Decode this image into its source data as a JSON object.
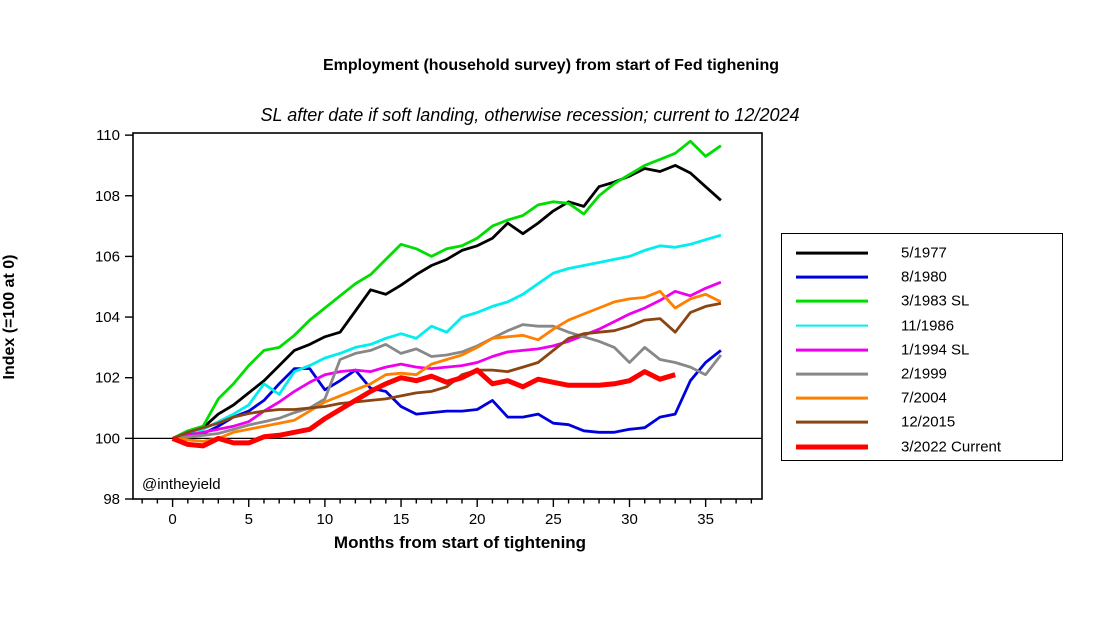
{
  "title": "Employment (household survey) from start of Fed tighening",
  "subtitle": "SL after date if soft landing, otherwise recession; current to 12/2024",
  "watermark": "@intheyield",
  "chart_data": {
    "type": "line",
    "title": "Employment (household survey) from start of Fed tighening",
    "subtitle": "SL after date if soft landing, otherwise recession; current to 12/2024",
    "xlabel": "Months from start of tightening",
    "ylabel": "Index (=100 at 0)",
    "xlim": [
      -2.6,
      38.7
    ],
    "ylim": [
      98,
      110.07
    ],
    "x_major_ticks": [
      0,
      5,
      10,
      15,
      20,
      25,
      30,
      35
    ],
    "x_minor_tick_every": 1,
    "y_ticks": [
      98,
      100,
      102,
      104,
      106,
      108,
      110
    ],
    "reference_line_y": 100,
    "grid": false,
    "legend_position": "right",
    "x_unit": "months_from_start",
    "series": [
      {
        "name": "5/1977",
        "color": "#000000",
        "line_width": 2.8,
        "values": [
          100,
          100.15,
          100.35,
          100.8,
          101.1,
          101.5,
          101.9,
          102.4,
          102.9,
          103.1,
          103.35,
          103.5,
          104.2,
          104.9,
          104.75,
          105.05,
          105.4,
          105.7,
          105.9,
          106.2,
          106.35,
          106.6,
          107.1,
          106.75,
          107.1,
          107.5,
          107.8,
          107.65,
          108.3,
          108.45,
          108.65,
          108.9,
          108.8,
          109.0,
          108.75,
          108.3,
          107.85
        ]
      },
      {
        "name": "8/1980",
        "color": "#0000DD",
        "line_width": 2.8,
        "values": [
          100,
          100.05,
          100.15,
          100.4,
          100.7,
          100.9,
          101.25,
          101.8,
          102.3,
          102.3,
          101.6,
          101.9,
          102.25,
          101.65,
          101.55,
          101.05,
          100.8,
          100.85,
          100.9,
          100.9,
          100.95,
          101.25,
          100.7,
          100.7,
          100.8,
          100.5,
          100.45,
          100.25,
          100.2,
          100.2,
          100.3,
          100.35,
          100.7,
          100.8,
          101.9,
          102.5,
          102.9
        ]
      },
      {
        "name": "3/1983 SL",
        "color": "#00DD00",
        "line_width": 2.8,
        "values": [
          100,
          100.25,
          100.4,
          101.3,
          101.8,
          102.4,
          102.9,
          103.0,
          103.4,
          103.9,
          104.3,
          104.7,
          105.1,
          105.4,
          105.9,
          106.4,
          106.25,
          106.0,
          106.25,
          106.35,
          106.6,
          107.0,
          107.2,
          107.35,
          107.7,
          107.8,
          107.75,
          107.4,
          108.0,
          108.4,
          108.7,
          109.0,
          109.2,
          109.4,
          109.8,
          109.3,
          109.65
        ]
      },
      {
        "name": "11/1986",
        "color": "#00EEEE",
        "line_width": 2.8,
        "values": [
          100,
          100.2,
          100.3,
          100.55,
          100.8,
          101.1,
          101.8,
          101.45,
          102.2,
          102.4,
          102.65,
          102.8,
          103.0,
          103.1,
          103.3,
          103.45,
          103.3,
          103.7,
          103.5,
          104.0,
          104.15,
          104.35,
          104.5,
          104.75,
          105.1,
          105.45,
          105.6,
          105.7,
          105.8,
          105.9,
          106.0,
          106.2,
          106.35,
          106.3,
          106.4,
          106.55,
          106.7
        ]
      },
      {
        "name": "1/1994 SL",
        "color": "#EE00EE",
        "line_width": 2.8,
        "values": [
          100,
          100.1,
          100.2,
          100.3,
          100.4,
          100.55,
          100.9,
          101.2,
          101.55,
          101.85,
          102.1,
          102.2,
          102.25,
          102.2,
          102.35,
          102.45,
          102.35,
          102.3,
          102.35,
          102.4,
          102.5,
          102.7,
          102.85,
          102.9,
          102.95,
          103.05,
          103.2,
          103.4,
          103.6,
          103.85,
          104.1,
          104.3,
          104.55,
          104.85,
          104.7,
          104.95,
          105.15
        ]
      },
      {
        "name": "2/1999",
        "color": "#888888",
        "line_width": 2.8,
        "values": [
          100,
          100.05,
          100.1,
          100.16,
          100.3,
          100.44,
          100.55,
          100.66,
          100.85,
          101.0,
          101.3,
          102.6,
          102.8,
          102.9,
          103.1,
          102.8,
          102.95,
          102.7,
          102.75,
          102.85,
          103.05,
          103.3,
          103.55,
          103.75,
          103.7,
          103.7,
          103.5,
          103.35,
          103.2,
          103.0,
          102.5,
          103.0,
          102.6,
          102.5,
          102.35,
          102.1,
          102.75
        ]
      },
      {
        "name": "7/2004",
        "color": "#FF8000",
        "line_width": 2.8,
        "values": [
          100,
          99.95,
          99.9,
          100.0,
          100.2,
          100.3,
          100.4,
          100.5,
          100.6,
          100.9,
          101.2,
          101.4,
          101.6,
          101.8,
          102.1,
          102.15,
          102.1,
          102.45,
          102.6,
          102.75,
          103.0,
          103.3,
          103.35,
          103.4,
          103.25,
          103.6,
          103.9,
          104.1,
          104.3,
          104.5,
          104.6,
          104.65,
          104.85,
          104.3,
          104.6,
          104.75,
          104.5
        ]
      },
      {
        "name": "12/2015",
        "color": "#8B4513",
        "line_width": 2.8,
        "values": [
          100,
          100.2,
          100.35,
          100.5,
          100.7,
          100.82,
          100.9,
          100.95,
          100.95,
          101.0,
          101.05,
          101.15,
          101.2,
          101.25,
          101.3,
          101.4,
          101.5,
          101.55,
          101.7,
          102.1,
          102.25,
          102.25,
          102.2,
          102.35,
          102.5,
          102.9,
          103.3,
          103.45,
          103.5,
          103.55,
          103.7,
          103.9,
          103.95,
          103.5,
          104.15,
          104.35,
          104.45
        ]
      },
      {
        "name": "3/2022 Current",
        "color": "#FF0000",
        "line_width": 5,
        "values": [
          100,
          99.8,
          99.75,
          100.0,
          99.85,
          99.85,
          100.05,
          100.1,
          100.2,
          100.3,
          100.65,
          100.95,
          101.25,
          101.55,
          101.8,
          102.0,
          101.9,
          102.05,
          101.85,
          102.0,
          102.25,
          101.8,
          101.9,
          101.7,
          101.95,
          101.85,
          101.75,
          101.75,
          101.75,
          101.8,
          101.9,
          102.2,
          101.95,
          102.1
        ]
      }
    ]
  }
}
